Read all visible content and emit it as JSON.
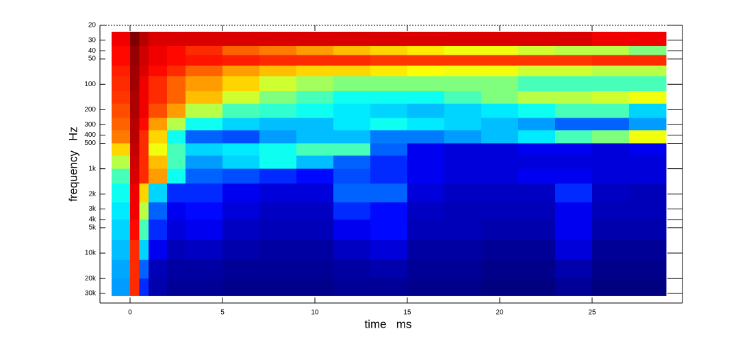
{
  "chart_data": {
    "type": "heatmap",
    "xlabel": "time   ms",
    "ylabel": "frequency   Hz",
    "colormap": "jet",
    "y_log": true,
    "y_reversed": true,
    "xlim": [
      -1.63,
      29.89
    ],
    "ylim": [
      20,
      39000
    ],
    "xticks": [
      0,
      5,
      10,
      15,
      20,
      25
    ],
    "yticks": [
      20,
      30,
      40,
      50,
      100,
      200,
      300,
      400,
      500,
      {
        "value": 1000,
        "label": "1k"
      },
      {
        "value": 2000,
        "label": "2k"
      },
      {
        "value": 3000,
        "label": "3k"
      },
      {
        "value": 4000,
        "label": "4k"
      },
      {
        "value": 5000,
        "label": "5k"
      },
      {
        "value": 10000,
        "label": "10k"
      },
      {
        "value": 20000,
        "label": "20k"
      },
      {
        "value": 30000,
        "label": "30k"
      }
    ],
    "x_edges": [
      -1,
      0,
      0.5,
      1,
      2,
      3,
      5,
      7,
      9,
      11,
      13,
      15,
      17,
      19,
      21,
      23,
      25,
      27,
      29
    ],
    "y_edges": [
      24,
      35,
      45,
      60,
      80,
      120,
      170,
      250,
      350,
      500,
      700,
      1000,
      1500,
      2500,
      4000,
      7000,
      12000,
      20000,
      32000
    ],
    "z": [
      [
        0.9,
        1,
        0.95,
        0.92,
        0.92,
        0.92,
        0.92,
        0.92,
        0.92,
        0.92,
        0.92,
        0.92,
        0.92,
        0.92,
        0.92,
        0.92,
        0.9,
        0.9
      ],
      [
        0.88,
        0.98,
        0.93,
        0.9,
        0.88,
        0.85,
        0.8,
        0.78,
        0.75,
        0.72,
        0.7,
        0.68,
        0.65,
        0.65,
        0.62,
        0.6,
        0.6,
        0.55
      ],
      [
        0.88,
        0.98,
        0.93,
        0.9,
        0.88,
        0.87,
        0.86,
        0.85,
        0.85,
        0.85,
        0.84,
        0.84,
        0.84,
        0.84,
        0.84,
        0.84,
        0.85,
        0.85
      ],
      [
        0.86,
        0.97,
        0.92,
        0.88,
        0.85,
        0.8,
        0.75,
        0.72,
        0.7,
        0.7,
        0.68,
        0.66,
        0.65,
        0.65,
        0.62,
        0.62,
        0.6,
        0.6
      ],
      [
        0.85,
        0.97,
        0.9,
        0.85,
        0.8,
        0.75,
        0.7,
        0.62,
        0.58,
        0.55,
        0.55,
        0.55,
        0.55,
        0.55,
        0.5,
        0.5,
        0.5,
        0.5
      ],
      [
        0.84,
        0.96,
        0.9,
        0.85,
        0.8,
        0.72,
        0.62,
        0.55,
        0.5,
        0.45,
        0.45,
        0.45,
        0.5,
        0.55,
        0.6,
        0.6,
        0.62,
        0.65
      ],
      [
        0.82,
        0.96,
        0.9,
        0.82,
        0.75,
        0.6,
        0.5,
        0.48,
        0.45,
        0.42,
        0.4,
        0.38,
        0.4,
        0.42,
        0.45,
        0.5,
        0.5,
        0.4
      ],
      [
        0.8,
        0.95,
        0.88,
        0.75,
        0.6,
        0.45,
        0.4,
        0.38,
        0.38,
        0.42,
        0.45,
        0.42,
        0.4,
        0.38,
        0.35,
        0.3,
        0.3,
        0.35
      ],
      [
        0.78,
        0.95,
        0.85,
        0.7,
        0.45,
        0.3,
        0.28,
        0.35,
        0.38,
        0.38,
        0.32,
        0.32,
        0.35,
        0.38,
        0.42,
        0.5,
        0.55,
        0.65
      ],
      [
        0.7,
        0.94,
        0.85,
        0.65,
        0.5,
        0.4,
        0.42,
        0.45,
        0.5,
        0.5,
        0.3,
        0.2,
        0.18,
        0.18,
        0.2,
        0.2,
        0.18,
        0.2
      ],
      [
        0.6,
        0.93,
        0.85,
        0.72,
        0.5,
        0.35,
        0.4,
        0.45,
        0.38,
        0.3,
        0.25,
        0.2,
        0.18,
        0.18,
        0.18,
        0.18,
        0.18,
        0.18
      ],
      [
        0.5,
        0.92,
        0.85,
        0.75,
        0.45,
        0.3,
        0.28,
        0.25,
        0.22,
        0.28,
        0.25,
        0.2,
        0.18,
        0.18,
        0.2,
        0.2,
        0.18,
        0.18
      ],
      [
        0.45,
        0.9,
        0.7,
        0.4,
        0.25,
        0.25,
        0.2,
        0.18,
        0.18,
        0.3,
        0.3,
        0.18,
        0.16,
        0.16,
        0.16,
        0.25,
        0.16,
        0.15
      ],
      [
        0.42,
        0.9,
        0.6,
        0.3,
        0.2,
        0.22,
        0.18,
        0.16,
        0.16,
        0.25,
        0.22,
        0.16,
        0.15,
        0.15,
        0.15,
        0.2,
        0.15,
        0.15
      ],
      [
        0.4,
        0.88,
        0.5,
        0.25,
        0.18,
        0.2,
        0.16,
        0.15,
        0.15,
        0.2,
        0.22,
        0.15,
        0.15,
        0.14,
        0.14,
        0.2,
        0.14,
        0.14
      ],
      [
        0.38,
        0.85,
        0.4,
        0.2,
        0.15,
        0.16,
        0.14,
        0.13,
        0.13,
        0.16,
        0.18,
        0.13,
        0.13,
        0.12,
        0.12,
        0.18,
        0.12,
        0.12
      ],
      [
        0.36,
        0.85,
        0.3,
        0.15,
        0.13,
        0.13,
        0.12,
        0.12,
        0.12,
        0.13,
        0.14,
        0.12,
        0.12,
        0.11,
        0.11,
        0.14,
        0.11,
        0.11
      ],
      [
        0.35,
        0.85,
        0.25,
        0.14,
        0.12,
        0.12,
        0.11,
        0.11,
        0.11,
        0.12,
        0.12,
        0.11,
        0.11,
        0.1,
        0.1,
        0.12,
        0.1,
        0.1
      ]
    ]
  }
}
